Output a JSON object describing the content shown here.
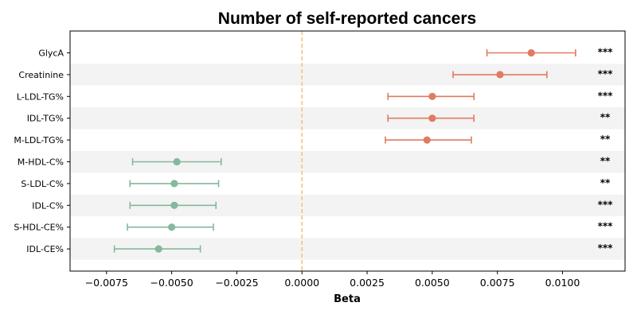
{
  "chart_data": {
    "type": "forest",
    "title": "Number of self-reported cancers",
    "xlabel": "Beta",
    "ylabel": "",
    "xlim": [
      -0.0089,
      0.0124
    ],
    "xticks": [
      -0.0075,
      -0.005,
      -0.0025,
      0.0,
      0.0025,
      0.005,
      0.0075,
      0.01
    ],
    "xtick_labels": [
      "−0.0075",
      "−0.0050",
      "−0.0025",
      "0.0000",
      "0.0025",
      "0.0050",
      "0.0075",
      "0.0100"
    ],
    "reference_line": 0.0,
    "grid": false,
    "colors": {
      "positive": "#e07b62",
      "negative": "#85b89c",
      "reference_line": "#f5c37a",
      "band": "#f3f3f3"
    },
    "rows": [
      {
        "label": "GlycA",
        "beta": 0.0088,
        "ci_low": 0.0071,
        "ci_high": 0.0105,
        "sig": "***"
      },
      {
        "label": "Creatinine",
        "beta": 0.0076,
        "ci_low": 0.0058,
        "ci_high": 0.0094,
        "sig": "***"
      },
      {
        "label": "L-LDL-TG%",
        "beta": 0.005,
        "ci_low": 0.0033,
        "ci_high": 0.0066,
        "sig": "***"
      },
      {
        "label": "IDL-TG%",
        "beta": 0.005,
        "ci_low": 0.0033,
        "ci_high": 0.0066,
        "sig": "**"
      },
      {
        "label": "M-LDL-TG%",
        "beta": 0.0048,
        "ci_low": 0.0032,
        "ci_high": 0.0065,
        "sig": "**"
      },
      {
        "label": "M-HDL-C%",
        "beta": -0.0048,
        "ci_low": -0.0065,
        "ci_high": -0.0031,
        "sig": "**"
      },
      {
        "label": "S-LDL-C%",
        "beta": -0.0049,
        "ci_low": -0.0066,
        "ci_high": -0.0032,
        "sig": "**"
      },
      {
        "label": "IDL-C%",
        "beta": -0.0049,
        "ci_low": -0.0066,
        "ci_high": -0.0033,
        "sig": "***"
      },
      {
        "label": "S-HDL-CE%",
        "beta": -0.005,
        "ci_low": -0.0067,
        "ci_high": -0.0034,
        "sig": "***"
      },
      {
        "label": "IDL-CE%",
        "beta": -0.0055,
        "ci_low": -0.0072,
        "ci_high": -0.0039,
        "sig": "***"
      }
    ]
  }
}
